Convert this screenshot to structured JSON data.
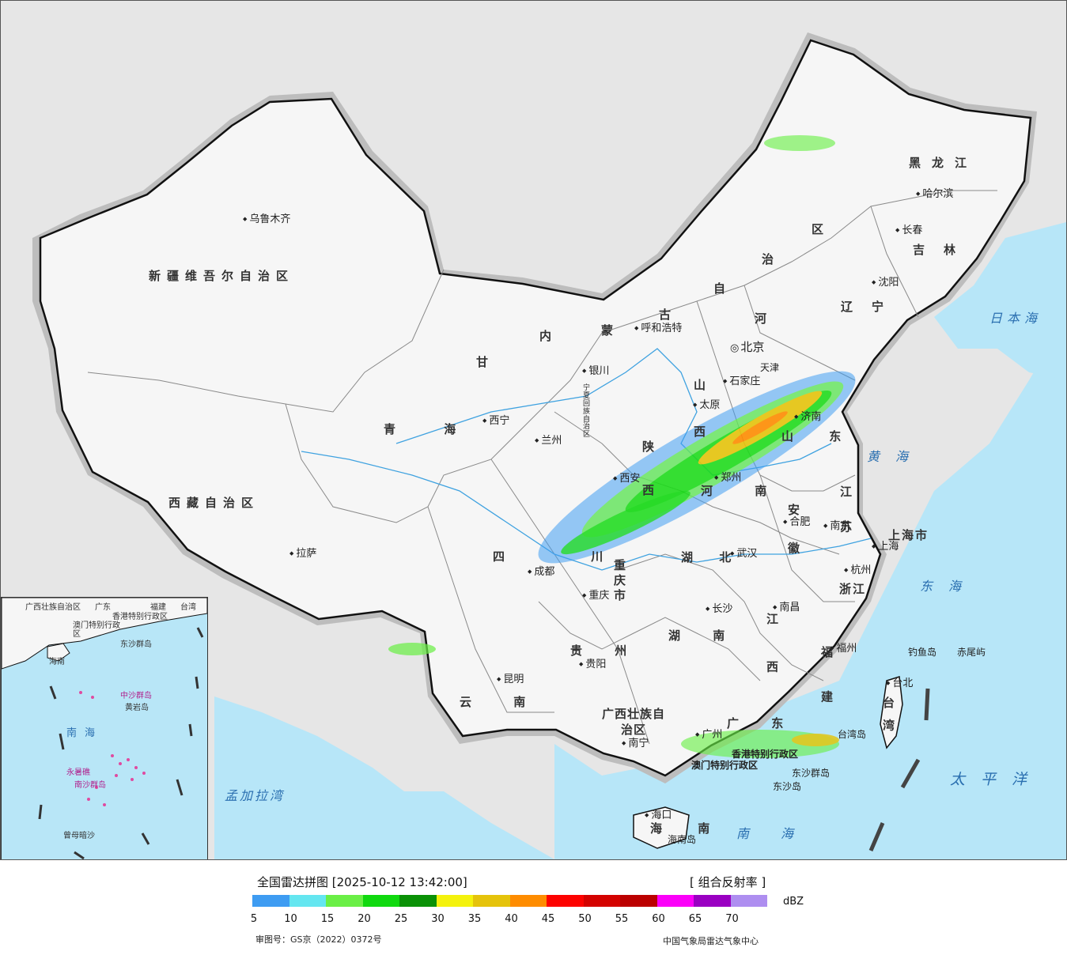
{
  "map": {
    "provinces": [
      {
        "id": "xinjiang",
        "label": "新疆维吾尔自治区"
      },
      {
        "id": "xizang",
        "label": "西藏自治区"
      },
      {
        "id": "qinghai",
        "label": "青 海"
      },
      {
        "id": "gansu",
        "label": "甘"
      },
      {
        "id": "neimenggu-1",
        "label": "内"
      },
      {
        "id": "neimenggu-2",
        "label": "蒙"
      },
      {
        "id": "neimenggu-3",
        "label": "古"
      },
      {
        "id": "neimenggu-4",
        "label": "自"
      },
      {
        "id": "neimenggu-5",
        "label": "治"
      },
      {
        "id": "neimenggu-6",
        "label": "区"
      },
      {
        "id": "heilongjiang",
        "label": "黑龙江"
      },
      {
        "id": "jilin",
        "label": "吉林"
      },
      {
        "id": "liaoning",
        "label": "辽宁"
      },
      {
        "id": "hebei",
        "label": "河"
      },
      {
        "id": "shanxi",
        "label": "山"
      },
      {
        "id": "shanxi-2",
        "label": "西"
      },
      {
        "id": "shaanxi",
        "label": "陕"
      },
      {
        "id": "shaanxi-2",
        "label": "西"
      },
      {
        "id": "ningxia",
        "label": "宁夏回族自治区"
      },
      {
        "id": "shandong",
        "label": "山 东"
      },
      {
        "id": "henan",
        "label": "河 南"
      },
      {
        "id": "jiangsu",
        "label": "江 苏"
      },
      {
        "id": "anhui",
        "label": "安 徽"
      },
      {
        "id": "shanghai",
        "label": "上海市"
      },
      {
        "id": "zhejiang",
        "label": "浙江"
      },
      {
        "id": "hubei",
        "label": "湖 北"
      },
      {
        "id": "sichuan",
        "label": "四 川"
      },
      {
        "id": "chongqing",
        "label": "重庆市"
      },
      {
        "id": "hunan",
        "label": "湖 南"
      },
      {
        "id": "jiangxi",
        "label": "江 西"
      },
      {
        "id": "fujian",
        "label": "福 建"
      },
      {
        "id": "taiwan",
        "label": "台 湾"
      },
      {
        "id": "guizhou",
        "label": "贵 州"
      },
      {
        "id": "yunnan",
        "label": "云 南"
      },
      {
        "id": "guangxi",
        "label": "广西壮族自治区"
      },
      {
        "id": "guangdong",
        "label": "广 东"
      },
      {
        "id": "hainan",
        "label": "海 南"
      },
      {
        "id": "hk",
        "label": "香港特别行政区"
      },
      {
        "id": "macau",
        "label": "澳门特别行政区"
      },
      {
        "id": "beijing",
        "label": "北京"
      },
      {
        "id": "tianjin",
        "label": "天津"
      }
    ],
    "cities": [
      {
        "id": "urumqi",
        "label": "乌鲁木齐"
      },
      {
        "id": "lhasa",
        "label": "拉萨"
      },
      {
        "id": "xining",
        "label": "西宁"
      },
      {
        "id": "lanzhou",
        "label": "兰州"
      },
      {
        "id": "yinchuan",
        "label": "银川"
      },
      {
        "id": "hohhot",
        "label": "呼和浩特"
      },
      {
        "id": "harbin",
        "label": "哈尔滨"
      },
      {
        "id": "changchun",
        "label": "长春"
      },
      {
        "id": "shenyang",
        "label": "沈阳"
      },
      {
        "id": "shijiazhuang",
        "label": "石家庄"
      },
      {
        "id": "taiyuan",
        "label": "太原"
      },
      {
        "id": "xian",
        "label": "西安"
      },
      {
        "id": "zhengzhou",
        "label": "郑州"
      },
      {
        "id": "jinan",
        "label": "济南"
      },
      {
        "id": "nanjing",
        "label": "南京"
      },
      {
        "id": "hefei",
        "label": "合肥"
      },
      {
        "id": "hangzhou",
        "label": "杭州"
      },
      {
        "id": "wuhan",
        "label": "武汉"
      },
      {
        "id": "chengdu",
        "label": "成都"
      },
      {
        "id": "chongqing-city",
        "label": "重庆"
      },
      {
        "id": "changsha",
        "label": "长沙"
      },
      {
        "id": "nanchang",
        "label": "南昌"
      },
      {
        "id": "fuzhou",
        "label": "福州"
      },
      {
        "id": "taibei",
        "label": "台北"
      },
      {
        "id": "guiyang",
        "label": "贵阳"
      },
      {
        "id": "kunming",
        "label": "昆明"
      },
      {
        "id": "nanning",
        "label": "南宁"
      },
      {
        "id": "guangzhou",
        "label": "广州"
      },
      {
        "id": "haikou",
        "label": "海口"
      },
      {
        "id": "shanghai-city",
        "label": "上海"
      }
    ],
    "seas": [
      {
        "id": "riben-hai",
        "label": "日本海"
      },
      {
        "id": "huang-hai",
        "label": "黄海"
      },
      {
        "id": "dong-hai",
        "label": "东海"
      },
      {
        "id": "taiping-yang",
        "label": "太平洋"
      },
      {
        "id": "nan-hai",
        "label": "南海"
      },
      {
        "id": "mengjiala-wan",
        "label": "孟加拉湾"
      }
    ],
    "islands": [
      {
        "id": "diaoyu",
        "label": "钓鱼岛"
      },
      {
        "id": "chiwei",
        "label": "赤尾屿"
      },
      {
        "id": "taiwan-island",
        "label": "台湾岛"
      },
      {
        "id": "dongsha-qundao",
        "label": "东沙群岛"
      },
      {
        "id": "dongsha-dao",
        "label": "东沙岛"
      },
      {
        "id": "hainan-dao",
        "label": "海南岛"
      }
    ],
    "inset": {
      "labels": [
        "广西壮族自治区",
        "广东",
        "福建",
        "台湾",
        "香港特别行政区",
        "澳门特别行政区",
        "东沙群岛",
        "海南",
        "南海",
        "中沙群岛",
        "黄岩岛",
        "永暑礁",
        "南沙群岛",
        "曾母暗沙"
      ]
    }
  },
  "legend": {
    "title": "全国雷达拼图 [2025-10-12 13:42:00]",
    "product": "[ 组合反射率 ]",
    "unit": "dBZ",
    "colors": [
      "#3e9cf2",
      "#64e6f0",
      "#6aef46",
      "#10d90f",
      "#0a9106",
      "#f4f20d",
      "#e5c30b",
      "#fe8c00",
      "#fd0200",
      "#d40200",
      "#bb0000",
      "#fb00f9",
      "#9a00c2",
      "#ae8ef0"
    ],
    "ticks": [
      "5",
      "10",
      "15",
      "20",
      "25",
      "30",
      "35",
      "40",
      "45",
      "50",
      "55",
      "60",
      "65",
      "70"
    ],
    "approval": "审图号：GS京（2022）0372号",
    "source": "中国气象局雷达气象中心"
  }
}
